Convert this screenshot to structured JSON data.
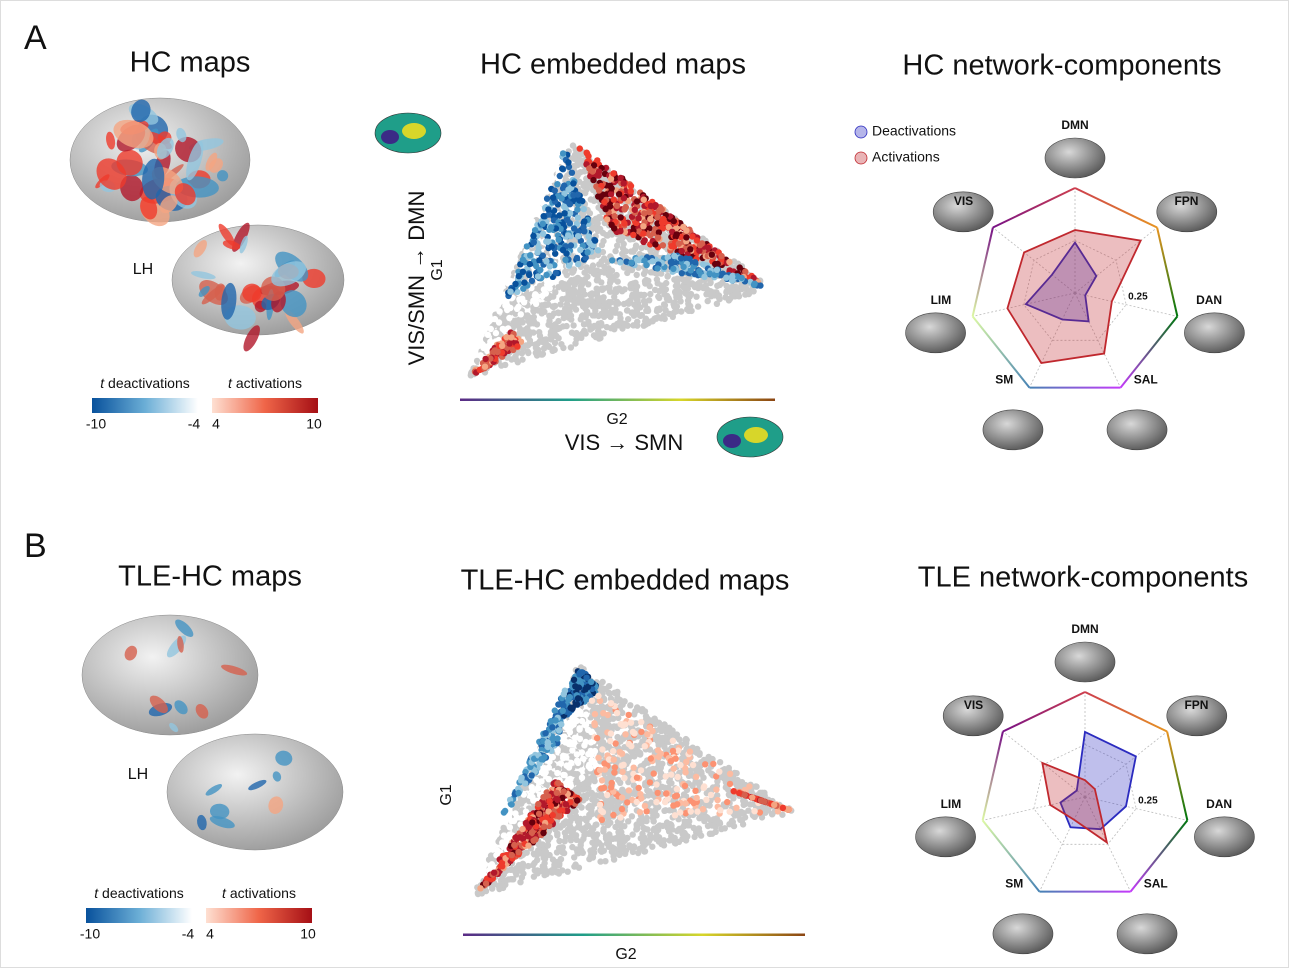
{
  "panels": [
    {
      "label": "A",
      "maps": {
        "title": "HC maps",
        "hemisphere": "LH",
        "colorbar": {
          "neg_var": "t",
          "neg_title": "deactivations",
          "pos_var": "t",
          "pos_title": "activations",
          "neg_ticks": [
            -10,
            -4
          ],
          "pos_ticks": [
            4,
            10
          ]
        }
      },
      "embedded": {
        "title": "HC embedded maps",
        "xlabel": "G2",
        "ylabel": "G1",
        "xaxis_title": "VIS → SMN",
        "yaxis_title": "VIS/SMN → DMN"
      }
    },
    {
      "label": "B",
      "maps": {
        "title": "TLE-HC maps",
        "hemisphere": "LH",
        "colorbar": {
          "neg_var": "t",
          "neg_title": "deactivations",
          "pos_var": "t",
          "pos_title": "activations",
          "neg_ticks": [
            -10,
            -4
          ],
          "pos_ticks": [
            4,
            10
          ]
        }
      },
      "embedded": {
        "title": "TLE-HC embedded maps",
        "xlabel": "G2",
        "ylabel": "G1"
      }
    }
  ],
  "chart_data": [
    {
      "type": "radar",
      "title": "HC network-components",
      "legend": true,
      "categories": [
        "DMN",
        "FPN",
        "DAN",
        "SAL",
        "SM",
        "LIM",
        "VIS"
      ],
      "category_colors": [
        "#cd3e4e",
        "#e69422",
        "#00760e",
        "#c43afa",
        "#4682b4",
        "#dcf8a4",
        "#781286"
      ],
      "rlim": [
        0,
        0.5
      ],
      "rticks": [
        0.25
      ],
      "series": [
        {
          "name": "Deactivations",
          "color": "#2b2bbf",
          "values": [
            0.24,
            0.13,
            0.05,
            0.15,
            0.14,
            0.24,
            0.14
          ]
        },
        {
          "name": "Activations",
          "color": "#c0282e",
          "values": [
            0.3,
            0.4,
            0.18,
            0.32,
            0.37,
            0.33,
            0.31
          ]
        }
      ]
    },
    {
      "type": "radar",
      "title": "TLE network-components",
      "legend": false,
      "categories": [
        "DMN",
        "FPN",
        "DAN",
        "SAL",
        "SM",
        "LIM",
        "VIS"
      ],
      "category_colors": [
        "#cd3e4e",
        "#e69422",
        "#00760e",
        "#c43afa",
        "#4682b4",
        "#dcf8a4",
        "#781286"
      ],
      "rlim": [
        0,
        0.5
      ],
      "rticks": [
        0.25
      ],
      "series": [
        {
          "name": "Deactivations",
          "color": "#2b2bbf",
          "values": [
            0.31,
            0.31,
            0.2,
            0.17,
            0.16,
            0.12,
            0.05
          ]
        },
        {
          "name": "Activations",
          "color": "#c0282e",
          "values": [
            0.08,
            0.06,
            0.06,
            0.24,
            0.12,
            0.17,
            0.26
          ]
        }
      ]
    }
  ]
}
